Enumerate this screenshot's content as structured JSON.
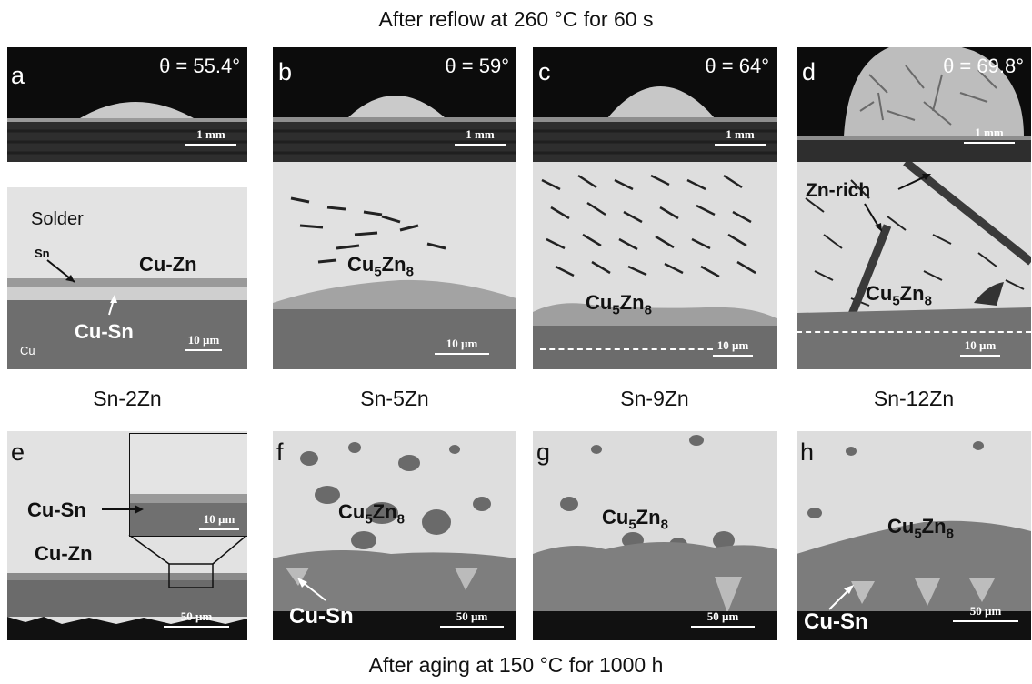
{
  "title_top": "After reflow  at 260 °C for 60 s",
  "title_bottom": "After aging at 150 °C for 1000 h",
  "panels": {
    "a": {
      "letter": "a",
      "angle": "θ = 55.4°",
      "scale": "1 mm"
    },
    "b": {
      "letter": "b",
      "angle": "θ = 59°",
      "scale": "1 mm"
    },
    "c": {
      "letter": "c",
      "angle": "θ = 64°",
      "scale": "1 mm"
    },
    "d": {
      "letter": "d",
      "angle": "θ = 69.8°",
      "scale": "1 mm"
    },
    "e": {
      "letter": "e",
      "scale": "50 µm",
      "inset_scale": "10 µm"
    },
    "f": {
      "letter": "f",
      "scale": "50 µm"
    },
    "g": {
      "letter": "g",
      "scale": "50 µm"
    },
    "h": {
      "letter": "h",
      "scale": "50 µm"
    }
  },
  "micro": {
    "a": {
      "solder": "Solder",
      "sn": "Sn",
      "cuzn": "Cu-Zn",
      "cusn": "Cu-Sn",
      "cu": "Cu",
      "scale": "10 µm"
    },
    "b": {
      "phase": "Cu",
      "sub": "5",
      "mid": "Zn",
      "sub2": "8",
      "scale": "10 µm"
    },
    "c": {
      "phase": "Cu",
      "sub": "5",
      "mid": "Zn",
      "sub2": "8",
      "scale": "10 µm"
    },
    "d": {
      "phase": "Cu",
      "sub": "5",
      "mid": "Zn",
      "sub2": "8",
      "zn": "Zn-rich",
      "scale": "10 µm"
    }
  },
  "aged": {
    "e": {
      "cusn": "Cu-Sn",
      "cuzn": "Cu-Zn"
    },
    "f": {
      "phase": "Cu",
      "sub": "5",
      "mid": "Zn",
      "sub2": "8",
      "cusn": "Cu-Sn"
    },
    "g": {
      "phase": "Cu",
      "sub": "5",
      "mid": "Zn",
      "sub2": "8"
    },
    "h": {
      "phase": "Cu",
      "sub": "5",
      "mid": "Zn",
      "sub2": "8",
      "cusn": "Cu-Sn"
    }
  },
  "alloys": [
    "Sn-2Zn",
    "Sn-5Zn",
    "Sn-9Zn",
    "Sn-12Zn"
  ]
}
